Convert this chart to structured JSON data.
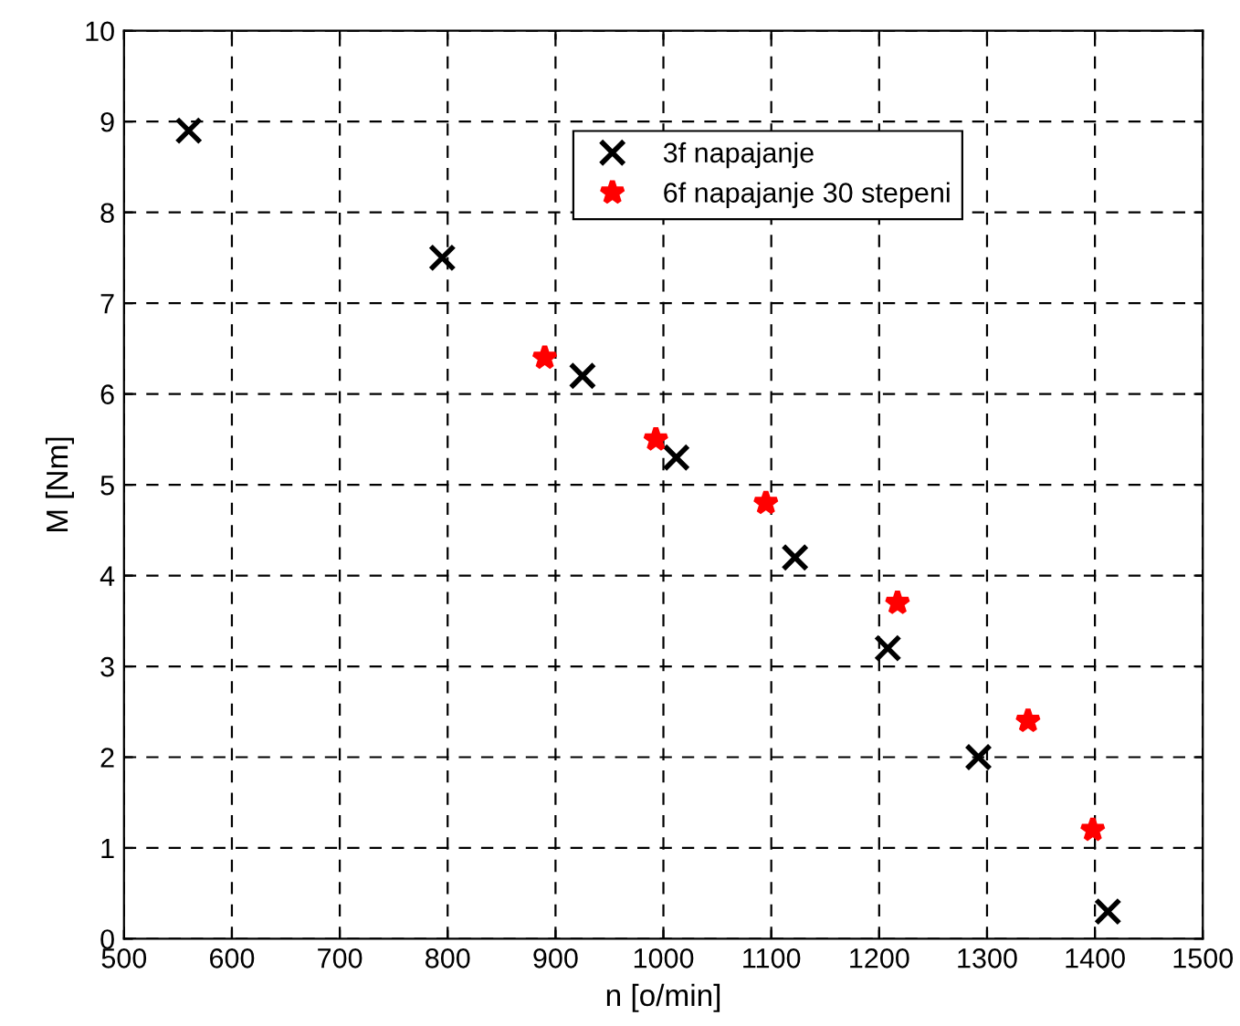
{
  "chart_data": {
    "type": "scatter",
    "xlabel": "n [o/min]",
    "ylabel": "M [Nm]",
    "xlim": [
      500,
      1500
    ],
    "xticks": [
      500,
      600,
      700,
      800,
      900,
      1000,
      1100,
      1200,
      1300,
      1400,
      1500
    ],
    "ylim": [
      0,
      10
    ],
    "yticks": [
      0,
      1,
      2,
      3,
      4,
      5,
      6,
      7,
      8,
      9,
      10
    ],
    "grid": true,
    "legend": "top right",
    "series": [
      {
        "name": "3f napajanje",
        "color": "#000000",
        "marker": "cross",
        "x": [
          560,
          795,
          925,
          1012,
          1122,
          1208,
          1292,
          1412
        ],
        "values": [
          8.9,
          7.5,
          6.2,
          5.3,
          4.2,
          3.2,
          2.0,
          0.3
        ]
      },
      {
        "name": "6f napajanje 30 stepeni",
        "color": "#ff0000",
        "marker": "star",
        "x": [
          890,
          993,
          1095,
          1217,
          1338,
          1398
        ],
        "values": [
          6.4,
          5.5,
          4.8,
          3.7,
          2.4,
          1.2
        ]
      }
    ]
  }
}
